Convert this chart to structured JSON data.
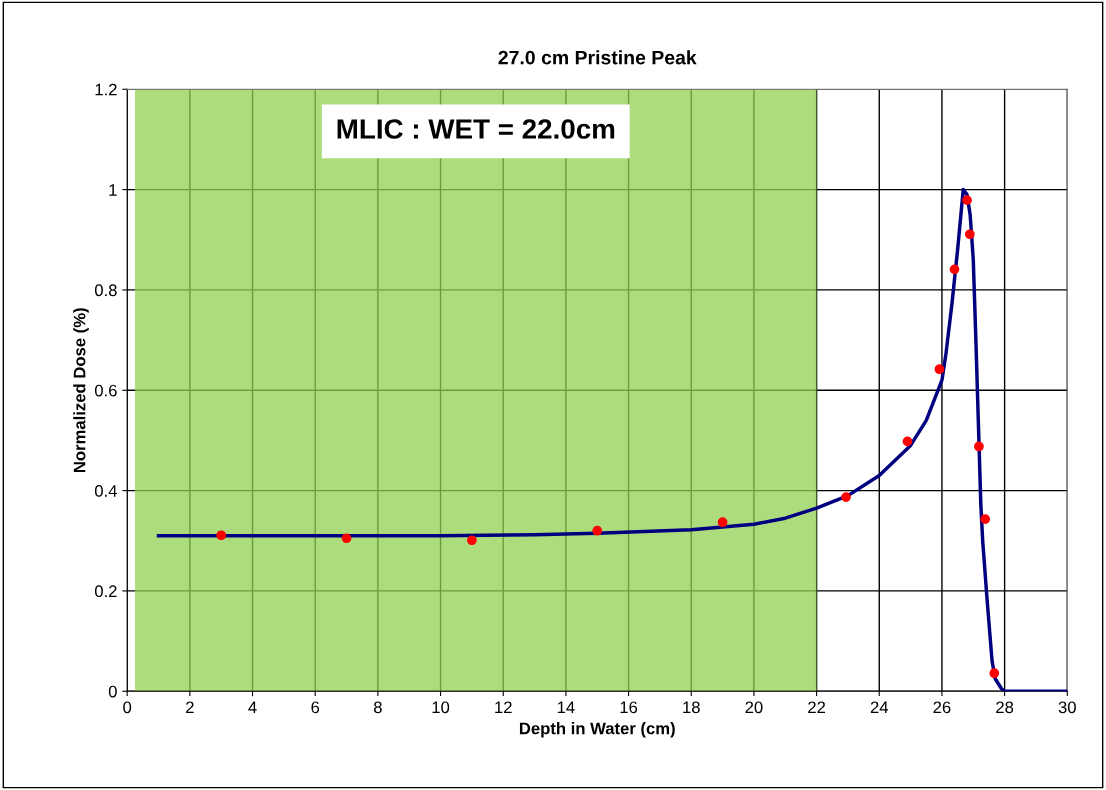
{
  "chart_data": {
    "type": "line",
    "title": "27.0 cm Pristine Peak",
    "xlabel": "Depth in Water (cm)",
    "ylabel": "Normalized Dose (%)",
    "xlim": [
      0,
      30
    ],
    "ylim": [
      0,
      1.2
    ],
    "xticks": [
      0,
      2,
      4,
      6,
      8,
      10,
      12,
      14,
      16,
      18,
      20,
      22,
      24,
      26,
      28,
      30
    ],
    "yticks": [
      0,
      0.2,
      0.4,
      0.6,
      0.8,
      1,
      1.2
    ],
    "grid": true,
    "series": [
      {
        "color": "#000080",
        "marker": "none",
        "line_style": "solid",
        "x": [
          1,
          5,
          10,
          13,
          15,
          18,
          20,
          21,
          22,
          23,
          24,
          25,
          25.5,
          26,
          26.13,
          26.32,
          26.5,
          26.68,
          26.8,
          26.9,
          27.0,
          27.08,
          27.24,
          27.3,
          27.45,
          27.6,
          27.7,
          27.9,
          28,
          30
        ],
        "values": [
          0.31,
          0.31,
          0.31,
          0.312,
          0.315,
          0.322,
          0.333,
          0.345,
          0.365,
          0.39,
          0.43,
          0.49,
          0.54,
          0.62,
          0.674,
          0.773,
          0.88,
          1.0,
          0.99,
          0.95,
          0.86,
          0.706,
          0.374,
          0.3,
          0.175,
          0.06,
          0.025,
          0.005,
          0,
          0
        ]
      },
      {
        "type": "scatter",
        "color": "#ff0000",
        "marker": "circle",
        "x": [
          3,
          7,
          11,
          15,
          19,
          22.94,
          24.9,
          25.92,
          26.4,
          26.8,
          26.89,
          27.18,
          27.38,
          27.67
        ],
        "values": [
          0.311,
          0.305,
          0.301,
          0.32,
          0.337,
          0.387,
          0.498,
          0.642,
          0.841,
          0.979,
          0.911,
          0.488,
          0.343,
          0.036
        ]
      }
    ],
    "bands": [
      {
        "axis": "x",
        "from": 0.25,
        "to": 22.0,
        "label": "MLIC : WET = 22.0cm",
        "color": "#92d050"
      }
    ]
  }
}
